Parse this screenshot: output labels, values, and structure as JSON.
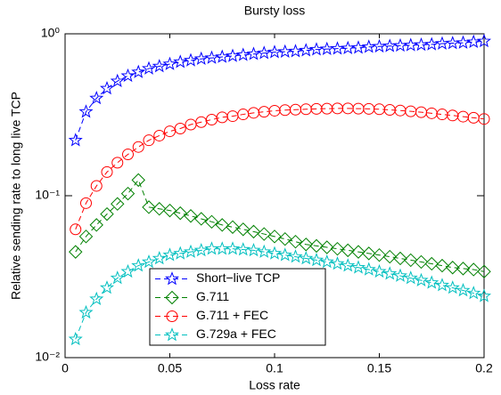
{
  "chart_data": {
    "type": "line",
    "title": "Bursty loss",
    "x_label": "Loss rate",
    "y_label": "Relative sending rate to long live TCP",
    "y_scale": "log",
    "legend": "lower center",
    "x": [
      0.005,
      0.01,
      0.015,
      0.02,
      0.025,
      0.03,
      0.035,
      0.04,
      0.045,
      0.05,
      0.055,
      0.06,
      0.065,
      0.07,
      0.075,
      0.08,
      0.085,
      0.09,
      0.095,
      0.1,
      0.105,
      0.11,
      0.115,
      0.12,
      0.125,
      0.13,
      0.135,
      0.14,
      0.145,
      0.15,
      0.155,
      0.16,
      0.165,
      0.17,
      0.175,
      0.18,
      0.185,
      0.19,
      0.195,
      0.2
    ],
    "xlim": [
      0,
      0.2
    ],
    "xticks": [
      0,
      0.05,
      0.1,
      0.15,
      0.2
    ],
    "ylim": [
      0.01,
      1
    ],
    "yticks": [
      {
        "value": 1,
        "label": "10⁰"
      },
      {
        "value": 0.1,
        "label": "10⁻¹"
      },
      {
        "value": 0.01,
        "label": "10⁻²"
      }
    ],
    "series": [
      {
        "name": "Short−live TCP",
        "color": "#0000ff",
        "marker": "star",
        "values": [
          0.22,
          0.33,
          0.4,
          0.46,
          0.51,
          0.55,
          0.58,
          0.61,
          0.63,
          0.65,
          0.67,
          0.685,
          0.7,
          0.71,
          0.72,
          0.73,
          0.74,
          0.75,
          0.76,
          0.77,
          0.775,
          0.78,
          0.79,
          0.8,
          0.805,
          0.81,
          0.815,
          0.82,
          0.83,
          0.835,
          0.84,
          0.845,
          0.85,
          0.855,
          0.86,
          0.87,
          0.875,
          0.88,
          0.89,
          0.9
        ]
      },
      {
        "name": "G.711",
        "color": "#008000",
        "marker": "diamond",
        "values": [
          0.045,
          0.056,
          0.066,
          0.077,
          0.089,
          0.103,
          0.125,
          0.085,
          0.083,
          0.081,
          0.078,
          0.075,
          0.072,
          0.069,
          0.066,
          0.064,
          0.062,
          0.06,
          0.058,
          0.056,
          0.054,
          0.052,
          0.05,
          0.049,
          0.048,
          0.047,
          0.046,
          0.045,
          0.044,
          0.043,
          0.042,
          0.041,
          0.04,
          0.039,
          0.038,
          0.037,
          0.036,
          0.0355,
          0.035,
          0.034
        ]
      },
      {
        "name": "G.711 + FEC",
        "color": "#ff0000",
        "marker": "circle",
        "values": [
          0.062,
          0.09,
          0.115,
          0.14,
          0.16,
          0.18,
          0.2,
          0.22,
          0.235,
          0.25,
          0.26,
          0.275,
          0.285,
          0.295,
          0.305,
          0.31,
          0.318,
          0.325,
          0.33,
          0.335,
          0.338,
          0.34,
          0.342,
          0.344,
          0.345,
          0.346,
          0.346,
          0.345,
          0.344,
          0.342,
          0.339,
          0.336,
          0.332,
          0.328,
          0.323,
          0.318,
          0.313,
          0.308,
          0.303,
          0.298
        ]
      },
      {
        "name": "G.729a + FEC",
        "color": "#00bfbf",
        "marker": "star",
        "values": [
          0.013,
          0.019,
          0.023,
          0.027,
          0.031,
          0.034,
          0.037,
          0.039,
          0.041,
          0.043,
          0.044,
          0.045,
          0.046,
          0.047,
          0.047,
          0.047,
          0.0465,
          0.046,
          0.045,
          0.044,
          0.043,
          0.042,
          0.041,
          0.04,
          0.039,
          0.038,
          0.037,
          0.036,
          0.035,
          0.034,
          0.033,
          0.032,
          0.031,
          0.03,
          0.029,
          0.028,
          0.027,
          0.026,
          0.025,
          0.024
        ]
      }
    ]
  }
}
